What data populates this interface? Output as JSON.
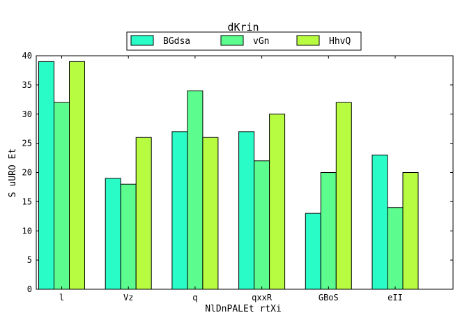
{
  "chart_data": {
    "type": "bar",
    "title": "dKrin",
    "xlabel": "NlDnPALEt rtXi",
    "ylabel": "S uURO Et",
    "categories": [
      "l",
      "Vz",
      "q",
      "qxxR",
      "GBoS",
      "eII"
    ],
    "series": [
      {
        "name": "BGdsa",
        "color": "#2afcc8",
        "values": [
          39,
          19,
          27,
          27,
          13,
          23
        ]
      },
      {
        "name": "vGn",
        "color": "#5cfc8e",
        "values": [
          32,
          18,
          34,
          22,
          20,
          14
        ]
      },
      {
        "name": "HhvQ",
        "color": "#b8fc42",
        "values": [
          39,
          26,
          26,
          30,
          32,
          20
        ]
      }
    ],
    "ylim": [
      0,
      40
    ],
    "yticks": [
      0,
      5,
      10,
      15,
      20,
      25,
      30,
      35,
      40
    ],
    "legend_position": "top-center",
    "grid": false
  }
}
